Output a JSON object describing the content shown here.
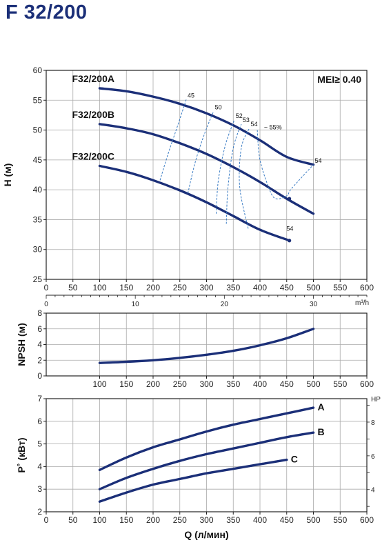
{
  "title": "F 32/200",
  "colors": {
    "curve": "#1b2f78",
    "iso": "#3a7cc4",
    "grid": "#aaaaaa",
    "frame": "#222222"
  },
  "chart_data": [
    {
      "type": "line",
      "ylabel": "H (м)",
      "x_ticks": [
        "0",
        "50",
        "100",
        "150",
        "200",
        "250",
        "300",
        "350",
        "400",
        "450",
        "500",
        "550",
        "600"
      ],
      "y_ticks": [
        "25",
        "30",
        "35",
        "40",
        "45",
        "50",
        "55",
        "60"
      ],
      "xlim": [
        0,
        600
      ],
      "ylim": [
        25,
        60
      ],
      "secondary_x": {
        "unit": "m³/h",
        "ticks": [
          "0",
          "10",
          "20",
          "30"
        ],
        "lim": [
          0,
          36
        ]
      },
      "annotation": "MEI≥ 0.40",
      "grid": true,
      "series": [
        {
          "name": "F32/200A",
          "x": [
            100,
            150,
            200,
            250,
            300,
            350,
            400,
            450,
            500
          ],
          "y": [
            57.0,
            56.5,
            55.6,
            54.4,
            52.8,
            50.8,
            48.3,
            45.5,
            44.2
          ]
        },
        {
          "name": "F32/200B",
          "x": [
            100,
            150,
            200,
            250,
            300,
            350,
            400,
            450,
            500
          ],
          "y": [
            51.0,
            50.3,
            49.3,
            47.8,
            46.0,
            43.8,
            41.3,
            38.5,
            36.0
          ]
        },
        {
          "name": "F32/200C",
          "x": [
            100,
            150,
            200,
            250,
            300,
            350,
            400,
            455
          ],
          "y": [
            44.0,
            43.0,
            41.6,
            39.9,
            37.9,
            35.6,
            33.3,
            31.5
          ]
        }
      ],
      "efficiency_labels": [
        {
          "label": "45",
          "x": 262,
          "y": 55.1
        },
        {
          "label": "50",
          "x": 313,
          "y": 53.1
        },
        {
          "label": "52",
          "x": 352,
          "y": 51.7
        },
        {
          "label": "53",
          "x": 365,
          "y": 51.0
        },
        {
          "label": "54",
          "x": 380,
          "y": 50.3
        },
        {
          "label": "~ 55%",
          "x": 405,
          "y": 49.8
        },
        {
          "label": "54",
          "x": 500,
          "y": 44.2
        },
        {
          "label": "54",
          "x": 447,
          "y": 32.8
        }
      ],
      "efficiency_curves": [
        {
          "label": "45",
          "x": [
            213,
            228,
            245,
            262
          ],
          "y": [
            41.6,
            46.0,
            50.5,
            55.1
          ]
        },
        {
          "label": "50",
          "x": [
            265,
            280,
            298,
            313
          ],
          "y": [
            39.4,
            45.0,
            49.8,
            53.1
          ]
        },
        {
          "label": "52",
          "x": [
            318,
            322,
            335,
            352
          ],
          "y": [
            36.0,
            41.5,
            47.4,
            51.7
          ]
        },
        {
          "label": "53",
          "x": [
            337,
            340,
            350,
            365
          ],
          "y": [
            34.3,
            40.3,
            47.0,
            51.0
          ]
        },
        {
          "label": "54",
          "x": [
            378,
            362,
            365,
            380
          ],
          "y": [
            33.5,
            40.5,
            47.0,
            50.3
          ]
        },
        {
          "label": "~ 55%",
          "x": [
            395,
            400,
            418,
            430,
            450,
            460,
            500
          ],
          "y": [
            50.0,
            45.0,
            40.0,
            38.5,
            39.0,
            40.3,
            44.2
          ]
        }
      ],
      "markers": [
        {
          "x": 455,
          "y": 31.5
        },
        {
          "x": 455,
          "y": 38.5
        }
      ]
    },
    {
      "type": "line",
      "ylabel": "NPSH (м)",
      "x_ticks": [
        "100",
        "150",
        "200",
        "250",
        "300",
        "350",
        "400",
        "450",
        "500",
        "550",
        "600"
      ],
      "y_ticks": [
        "0",
        "2",
        "4",
        "6",
        "8"
      ],
      "xlim": [
        0,
        600
      ],
      "ylim": [
        0,
        8
      ],
      "grid": true,
      "series": [
        {
          "x": [
            100,
            150,
            200,
            250,
            300,
            350,
            400,
            450,
            500
          ],
          "y": [
            1.65,
            1.8,
            2.0,
            2.3,
            2.7,
            3.2,
            3.9,
            4.8,
            6.0
          ]
        }
      ]
    },
    {
      "type": "line",
      "ylabel": "P˚ (кВт)",
      "xlabel": "Q (л/мин)",
      "x_ticks": [
        "0",
        "50",
        "100",
        "150",
        "200",
        "250",
        "300",
        "350",
        "400",
        "450",
        "500",
        "550",
        "600"
      ],
      "y_ticks": [
        "2",
        "3",
        "4",
        "5",
        "6",
        "7"
      ],
      "xlim": [
        0,
        600
      ],
      "ylim": [
        2,
        7
      ],
      "secondary_y": {
        "unit": "HP",
        "ticks": [
          "4",
          "6",
          "8"
        ],
        "lim": [
          2.68,
          9.39
        ]
      },
      "grid": true,
      "series": [
        {
          "name": "A",
          "x": [
            100,
            150,
            200,
            250,
            300,
            350,
            400,
            450,
            500
          ],
          "y": [
            3.85,
            4.4,
            4.85,
            5.2,
            5.55,
            5.85,
            6.1,
            6.35,
            6.6
          ]
        },
        {
          "name": "B",
          "x": [
            100,
            150,
            200,
            250,
            300,
            350,
            400,
            450,
            500
          ],
          "y": [
            3.0,
            3.5,
            3.9,
            4.25,
            4.55,
            4.8,
            5.05,
            5.3,
            5.5
          ]
        },
        {
          "name": "C",
          "x": [
            100,
            150,
            200,
            250,
            300,
            350,
            400,
            450
          ],
          "y": [
            2.45,
            2.85,
            3.2,
            3.45,
            3.7,
            3.9,
            4.1,
            4.3
          ]
        }
      ]
    }
  ]
}
